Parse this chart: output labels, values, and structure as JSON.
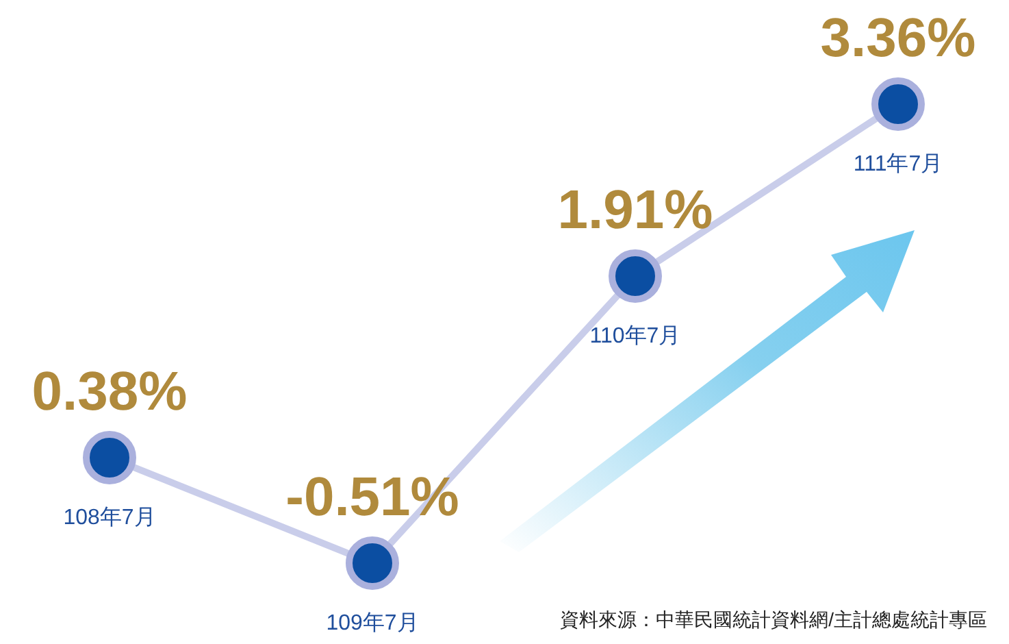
{
  "chart_data": {
    "type": "line",
    "categories": [
      "108年7月",
      "109年7月",
      "110年7月",
      "111年7月"
    ],
    "series": [
      {
        "color": "#c9cdea",
        "colors": [
          "#0b4ea2",
          "#0b4ea2",
          "#0b4ea2",
          "#0b4ea2"
        ],
        "values": [
          0.38,
          -0.51,
          1.91,
          3.36
        ],
        "value_labels": [
          "0.38%",
          "-0.51%",
          "1.91%",
          "3.36%"
        ]
      }
    ],
    "marker": "circle",
    "tick_labels": false,
    "annotations": [
      "資料來源：中華民國統計資料網/主計總處統計專區"
    ]
  }
}
